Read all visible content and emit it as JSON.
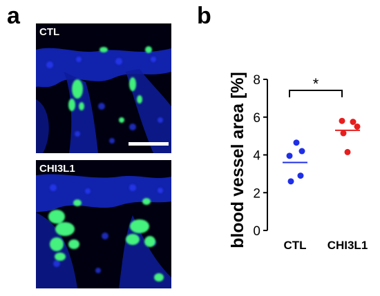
{
  "panels": {
    "a_letter": "a",
    "b_letter": "b"
  },
  "images": {
    "top_label": "CTL",
    "bottom_label": "CHI3L1",
    "colors": {
      "nuclei": "#1a2fe0",
      "vessel": "#39e07a",
      "background": "#000000"
    }
  },
  "chart_data": {
    "type": "scatter",
    "title": "",
    "xlabel": "",
    "ylabel": "blood vessel area [%]",
    "categories": [
      "CTL",
      "CHI3L1"
    ],
    "ylim": [
      0,
      8
    ],
    "yticks": [
      0,
      2,
      4,
      6,
      8
    ],
    "grid": false,
    "series": [
      {
        "category": "CTL",
        "color": "#1f2fe6",
        "mean": 3.6,
        "values": [
          4.65,
          4.2,
          3.95,
          2.9,
          2.6
        ]
      },
      {
        "category": "CHI3L1",
        "color": "#e61e1e",
        "mean": 5.3,
        "values": [
          5.8,
          5.75,
          5.5,
          5.15,
          4.15
        ]
      }
    ],
    "significance": {
      "between": [
        "CTL",
        "CHI3L1"
      ],
      "label": "*"
    }
  }
}
